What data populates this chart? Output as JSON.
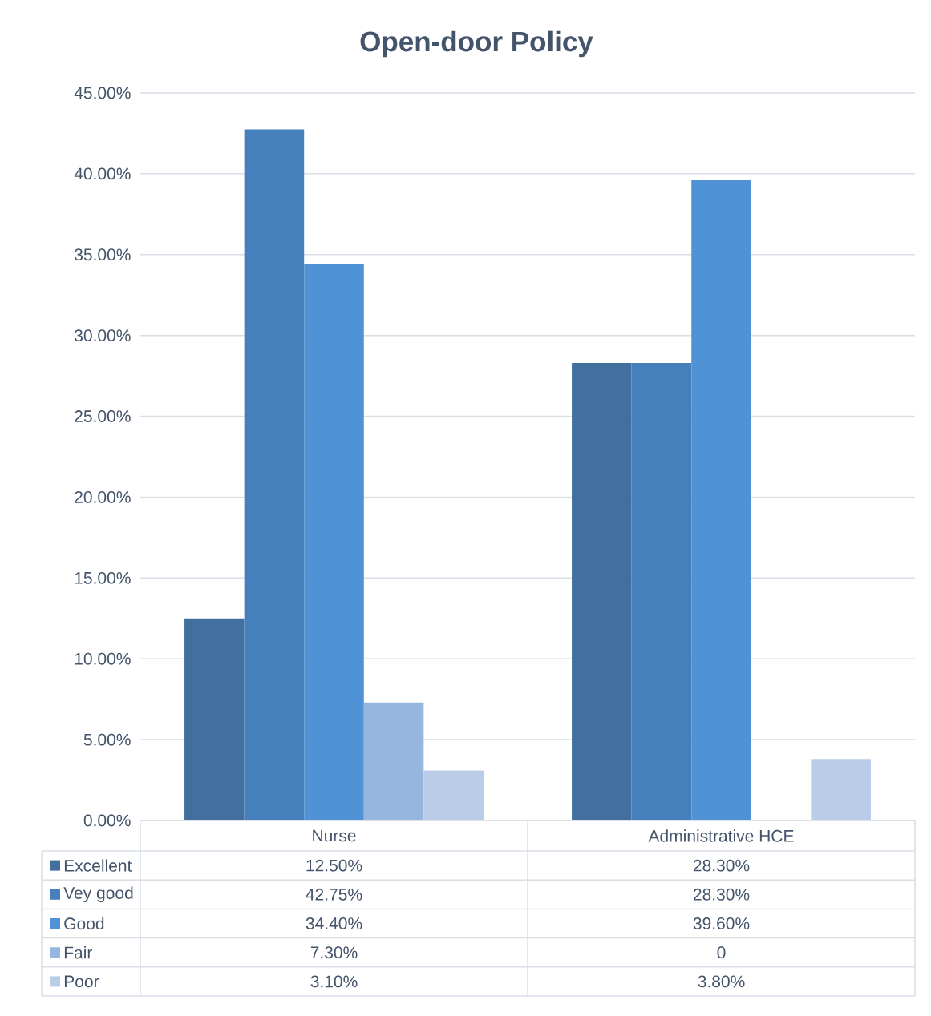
{
  "chart_data": {
    "type": "bar",
    "title": "Open-door Policy",
    "categories": [
      "Nurse",
      "Administrative HCE"
    ],
    "series": [
      {
        "name": "Excellent",
        "color": "#41709f",
        "values": [
          12.5,
          28.3
        ],
        "value_labels": [
          "12.50%",
          "28.30%"
        ]
      },
      {
        "name": "Vey good",
        "color": "#4580bd",
        "values": [
          42.75,
          28.3
        ],
        "value_labels": [
          "42.75%",
          "28.30%"
        ]
      },
      {
        "name": "Good",
        "color": "#4f93d6",
        "values": [
          34.4,
          39.6
        ],
        "value_labels": [
          "34.40%",
          "39.60%"
        ]
      },
      {
        "name": "Fair",
        "color": "#96b6df",
        "values": [
          7.3,
          0
        ],
        "value_labels": [
          "7.30%",
          "0"
        ]
      },
      {
        "name": "Poor",
        "color": "#b9cce8",
        "values": [
          3.1,
          3.8
        ],
        "value_labels": [
          "3.10%",
          "3.80%"
        ]
      }
    ],
    "ylim": [
      0,
      45
    ],
    "yticks": [
      {
        "value": 0,
        "label": "0.00%"
      },
      {
        "value": 5,
        "label": "5.00%"
      },
      {
        "value": 10,
        "label": "10.00%"
      },
      {
        "value": 15,
        "label": "15.00%"
      },
      {
        "value": 20,
        "label": "20.00%"
      },
      {
        "value": 25,
        "label": "25.00%"
      },
      {
        "value": 30,
        "label": "30.00%"
      },
      {
        "value": 35,
        "label": "35.00%"
      },
      {
        "value": 40,
        "label": "40.00%"
      },
      {
        "value": 45,
        "label": "45.00%"
      }
    ],
    "grid": "y",
    "legend": "bottom"
  }
}
